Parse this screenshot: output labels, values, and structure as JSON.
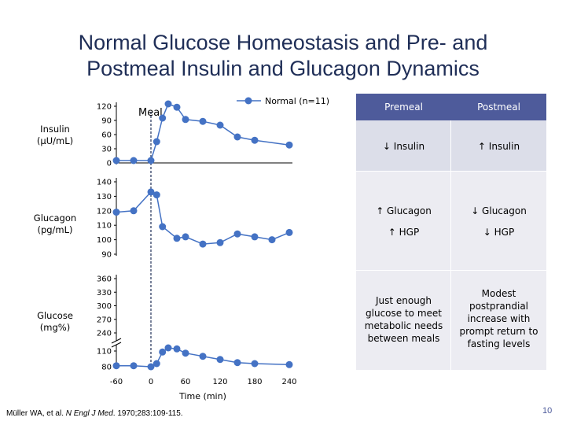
{
  "title_line1": "Normal Glucose Homeostasis and Pre- and",
  "title_line2": "Postmeal Insulin and Glucagon Dynamics",
  "legend_label": "Normal (n=11)",
  "meal_label": "Meal",
  "panel_labels": {
    "insulin": [
      "Insulin",
      "(µU/mL)"
    ],
    "glucagon": [
      "Glucagon",
      "(pg/mL)"
    ],
    "glucose": [
      "Glucose",
      "(mg%)"
    ]
  },
  "colors": {
    "series": "#4472c4",
    "meal_line": "#1f2e57",
    "table_header": "#4e5b9b"
  },
  "chart_data": {
    "type": "line",
    "xlabel": "Time (min)",
    "x_ticks": [
      -60,
      0,
      60,
      120,
      180,
      240
    ],
    "xlim": [
      -60,
      240
    ],
    "meal_time": 0,
    "series_name": "Normal (n=11)",
    "panels": [
      {
        "id": "insulin",
        "ylabel": "Insulin (µU/mL)",
        "ylim": [
          0,
          120
        ],
        "y_ticks": [
          120,
          90,
          60,
          30,
          0
        ],
        "points": [
          [
            -60,
            5
          ],
          [
            -30,
            5
          ],
          [
            0,
            5
          ],
          [
            10,
            45
          ],
          [
            20,
            95
          ],
          [
            30,
            125
          ],
          [
            45,
            118
          ],
          [
            60,
            92
          ],
          [
            90,
            88
          ],
          [
            120,
            80
          ],
          [
            150,
            55
          ],
          [
            180,
            48
          ],
          [
            240,
            38
          ]
        ]
      },
      {
        "id": "glucagon",
        "ylabel": "Glucagon (pg/mL)",
        "ylim": [
          90,
          140
        ],
        "y_ticks": [
          140,
          130,
          120,
          110,
          100,
          90
        ],
        "points": [
          [
            -60,
            119
          ],
          [
            -30,
            120
          ],
          [
            0,
            133
          ],
          [
            10,
            131
          ],
          [
            20,
            109
          ],
          [
            45,
            101
          ],
          [
            60,
            102
          ],
          [
            90,
            97
          ],
          [
            120,
            98
          ],
          [
            150,
            104
          ],
          [
            180,
            102
          ],
          [
            210,
            100
          ],
          [
            240,
            105
          ]
        ]
      },
      {
        "id": "glucose",
        "ylabel": "Glucose (mg%)",
        "y_ticks": [
          360,
          330,
          300,
          270,
          240,
          110,
          80
        ],
        "upper_range": [
          240,
          360
        ],
        "lower_range": [
          80,
          110
        ],
        "axis_break": true,
        "points": [
          [
            -60,
            82
          ],
          [
            -30,
            82
          ],
          [
            0,
            80
          ],
          [
            10,
            86
          ],
          [
            20,
            108
          ],
          [
            30,
            116
          ],
          [
            45,
            114
          ],
          [
            60,
            106
          ],
          [
            90,
            100
          ],
          [
            120,
            94
          ],
          [
            150,
            88
          ],
          [
            180,
            86
          ],
          [
            240,
            84
          ]
        ]
      }
    ]
  },
  "table": {
    "headers": [
      "Premeal",
      "Postmeal"
    ],
    "rows": [
      {
        "premeal": "↓ Insulin",
        "postmeal": "↑ Insulin"
      },
      {
        "premeal": "↑ Glucagon",
        "postmeal": "↓ Glucagon"
      },
      {
        "premeal": "↑ HGP",
        "postmeal": "↓ HGP"
      }
    ],
    "notes": {
      "premeal": [
        "Just enough",
        "glucose to meet",
        "metabolic needs",
        "between meals"
      ],
      "postmeal": [
        "Modest",
        "postprandial",
        "increase with",
        "prompt return to",
        "fasting levels"
      ]
    }
  },
  "citation": {
    "authors": "Müller WA, et al. ",
    "journal": "N Engl J Med",
    "details": ". 1970;283:109-115."
  },
  "page_number": "10"
}
